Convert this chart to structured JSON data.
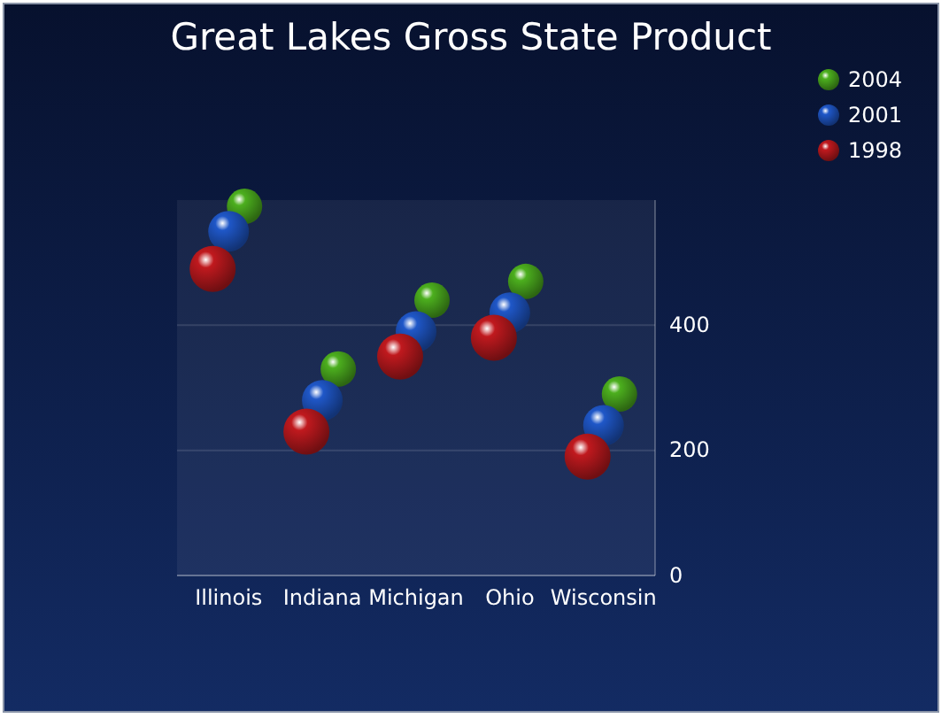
{
  "chart_data": {
    "type": "scatter",
    "title": "Great Lakes Gross State Product",
    "categories": [
      "Illinois",
      "Indiana",
      "Michigan",
      "Ohio",
      "Wisconsin"
    ],
    "series": [
      {
        "name": "2004",
        "color": "#4caf1e",
        "values": [
          590,
          330,
          440,
          470,
          290
        ]
      },
      {
        "name": "2001",
        "color": "#1f57c8",
        "values": [
          550,
          280,
          390,
          420,
          240
        ]
      },
      {
        "name": "1998",
        "color": "#c0191e",
        "values": [
          490,
          230,
          350,
          380,
          190
        ]
      }
    ],
    "ylim": [
      0,
      600
    ],
    "yticks": [
      0,
      200,
      400
    ],
    "grid": "y",
    "legend": "top right",
    "marker": "circle"
  }
}
